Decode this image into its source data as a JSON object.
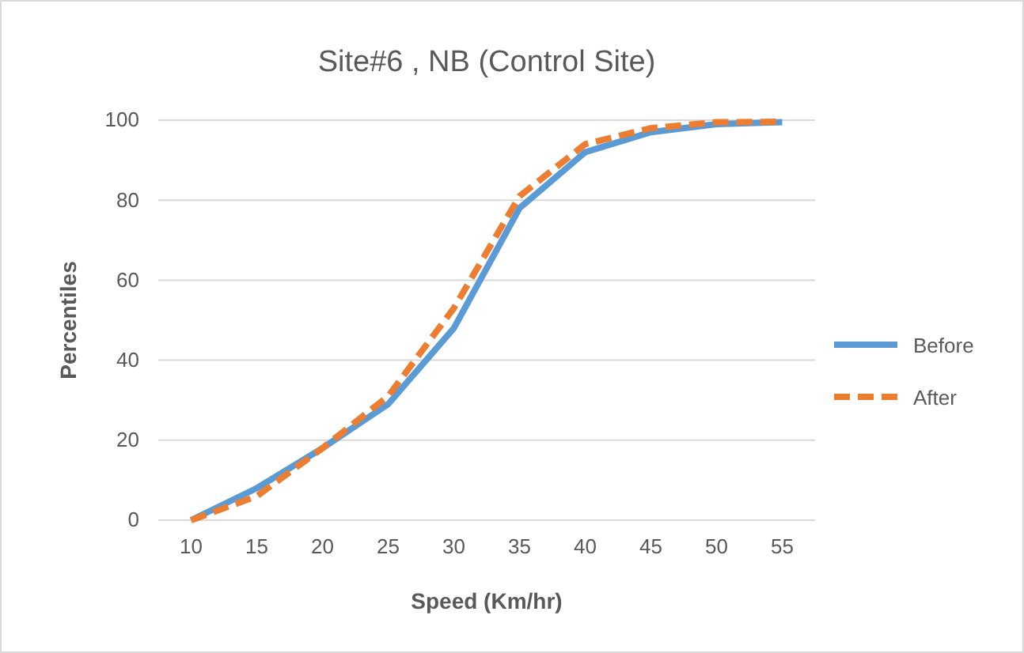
{
  "chart_data": {
    "type": "line",
    "title": "Site#6 , NB (Control Site)",
    "xlabel": "Speed (Km/hr)",
    "ylabel": "Percentiles",
    "categories": [
      "10",
      "15",
      "20",
      "25",
      "30",
      "35",
      "40",
      "45",
      "50",
      "55"
    ],
    "series": [
      {
        "name": "Before",
        "color": "#5b9bd5",
        "line_style": "solid",
        "values": [
          0,
          8,
          18,
          29,
          48,
          78,
          92,
          97,
          99,
          99.5
        ]
      },
      {
        "name": "After",
        "color": "#ed7d31",
        "line_style": "dashed",
        "values": [
          0,
          6,
          18,
          31,
          53,
          81,
          94,
          98,
          99.5,
          99.6
        ]
      }
    ],
    "ylim": [
      0,
      100
    ],
    "yticks": [
      0,
      20,
      40,
      60,
      80,
      100
    ],
    "grid": "y",
    "legend": "right",
    "marker": "none"
  }
}
